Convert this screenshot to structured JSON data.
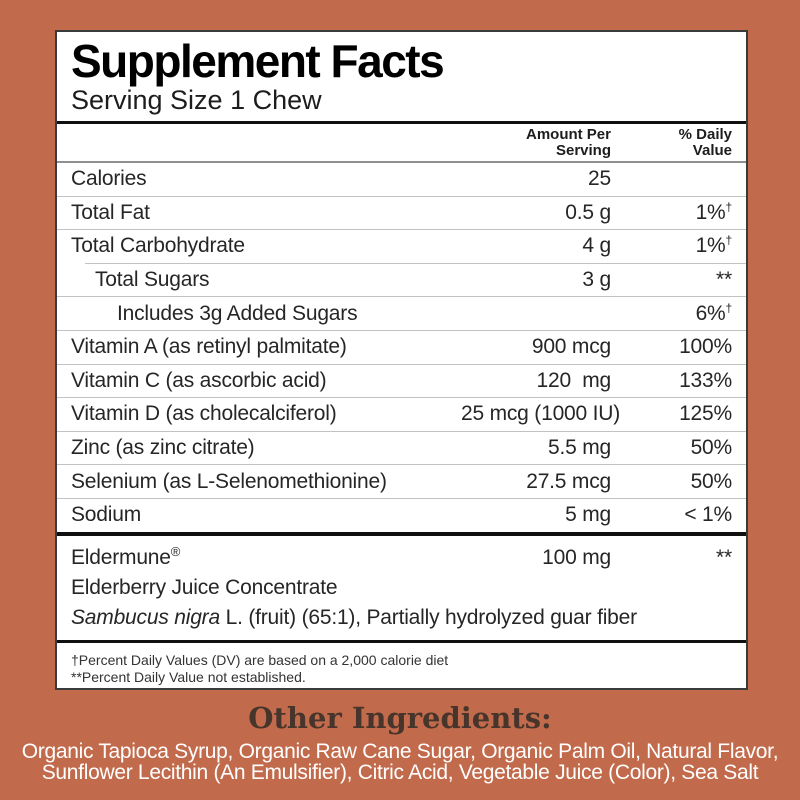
{
  "colors": {
    "background": "#c26b4c",
    "panel_background": "#ffffff",
    "panel_border": "#3a3a3a",
    "other_ingredients_heading": "#47352c",
    "other_ingredients_text": "#ffffff"
  },
  "label": {
    "title": "Supplement Facts",
    "serving_size": "Serving Size 1 Chew",
    "columns": {
      "amount_line1": "Amount Per",
      "amount_line2": "Serving",
      "dv_line1": "% Daily",
      "dv_line2": "Value"
    },
    "rows": [
      {
        "name": "Calories",
        "amount": "25",
        "dv": "",
        "dv_sup": ""
      },
      {
        "name": "Total Fat",
        "amount": "0.5 g",
        "dv": "1%",
        "dv_sup": "†"
      },
      {
        "name": "Total Carbohydrate",
        "amount": "4 g",
        "dv": "1%",
        "dv_sup": "†"
      },
      {
        "name": "Total Sugars",
        "amount": "3 g",
        "dv": "**",
        "dv_sup": ""
      },
      {
        "name": "Includes 3g Added Sugars",
        "amount": "",
        "dv": "6%",
        "dv_sup": "†"
      },
      {
        "name": "Vitamin A (as retinyl palmitate)",
        "amount": "900 mcg",
        "dv": "100%",
        "dv_sup": ""
      },
      {
        "name": "Vitamin C (as ascorbic acid)",
        "amount": "120  mg",
        "dv": "133%",
        "dv_sup": ""
      },
      {
        "name": "Vitamin D (as cholecalciferol)",
        "amount": "25 mcg (1000 IU)",
        "dv": "125%",
        "dv_sup": ""
      },
      {
        "name": "Zinc (as zinc citrate)",
        "amount": "5.5 mg",
        "dv": "50%",
        "dv_sup": ""
      },
      {
        "name": "Selenium (as L-Selenomethionine)",
        "amount": "27.5 mcg",
        "dv": "50%",
        "dv_sup": ""
      },
      {
        "name": "Sodium",
        "amount": "5 mg",
        "dv": "< 1%",
        "dv_sup": ""
      }
    ],
    "blend": {
      "name": "Eldermune",
      "name_sup": "®",
      "amount": "100 mg",
      "dv": "**",
      "line2": "Elderberry Juice Concentrate",
      "line3_italic": "Sambucus nigra",
      "line3_rest": " L. (fruit) (65:1), Partially hydrolyzed guar fiber"
    },
    "footnotes": {
      "line1": "†Percent Daily Values (DV) are based on a 2,000 calorie diet",
      "line2": "**Percent Daily Value not established."
    }
  },
  "other_ingredients": {
    "heading": "Other Ingredients:",
    "line1": "Organic Tapioca Syrup, Organic Raw Cane Sugar, Organic Palm Oil, Natural Flavor,",
    "line2": "Sunflower Lecithin (An Emulsifier), Citric Acid, Vegetable Juice (Color), Sea Salt"
  }
}
